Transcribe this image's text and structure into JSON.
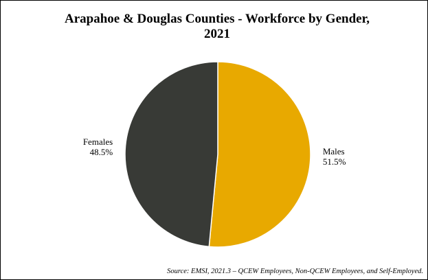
{
  "chart_data": {
    "type": "pie",
    "title": "Arapahoe & Douglas Counties - Workforce by Gender, 2021",
    "categories": [
      "Males",
      "Females"
    ],
    "values": [
      51.5,
      48.5
    ],
    "value_labels": [
      "51.5%",
      "48.5%"
    ],
    "colors": [
      "#e8a900",
      "#383a36"
    ],
    "source": "Source: EMSI, 2021.3 – QCEW Employees, Non-QCEW Employees, and Self-Employed."
  }
}
